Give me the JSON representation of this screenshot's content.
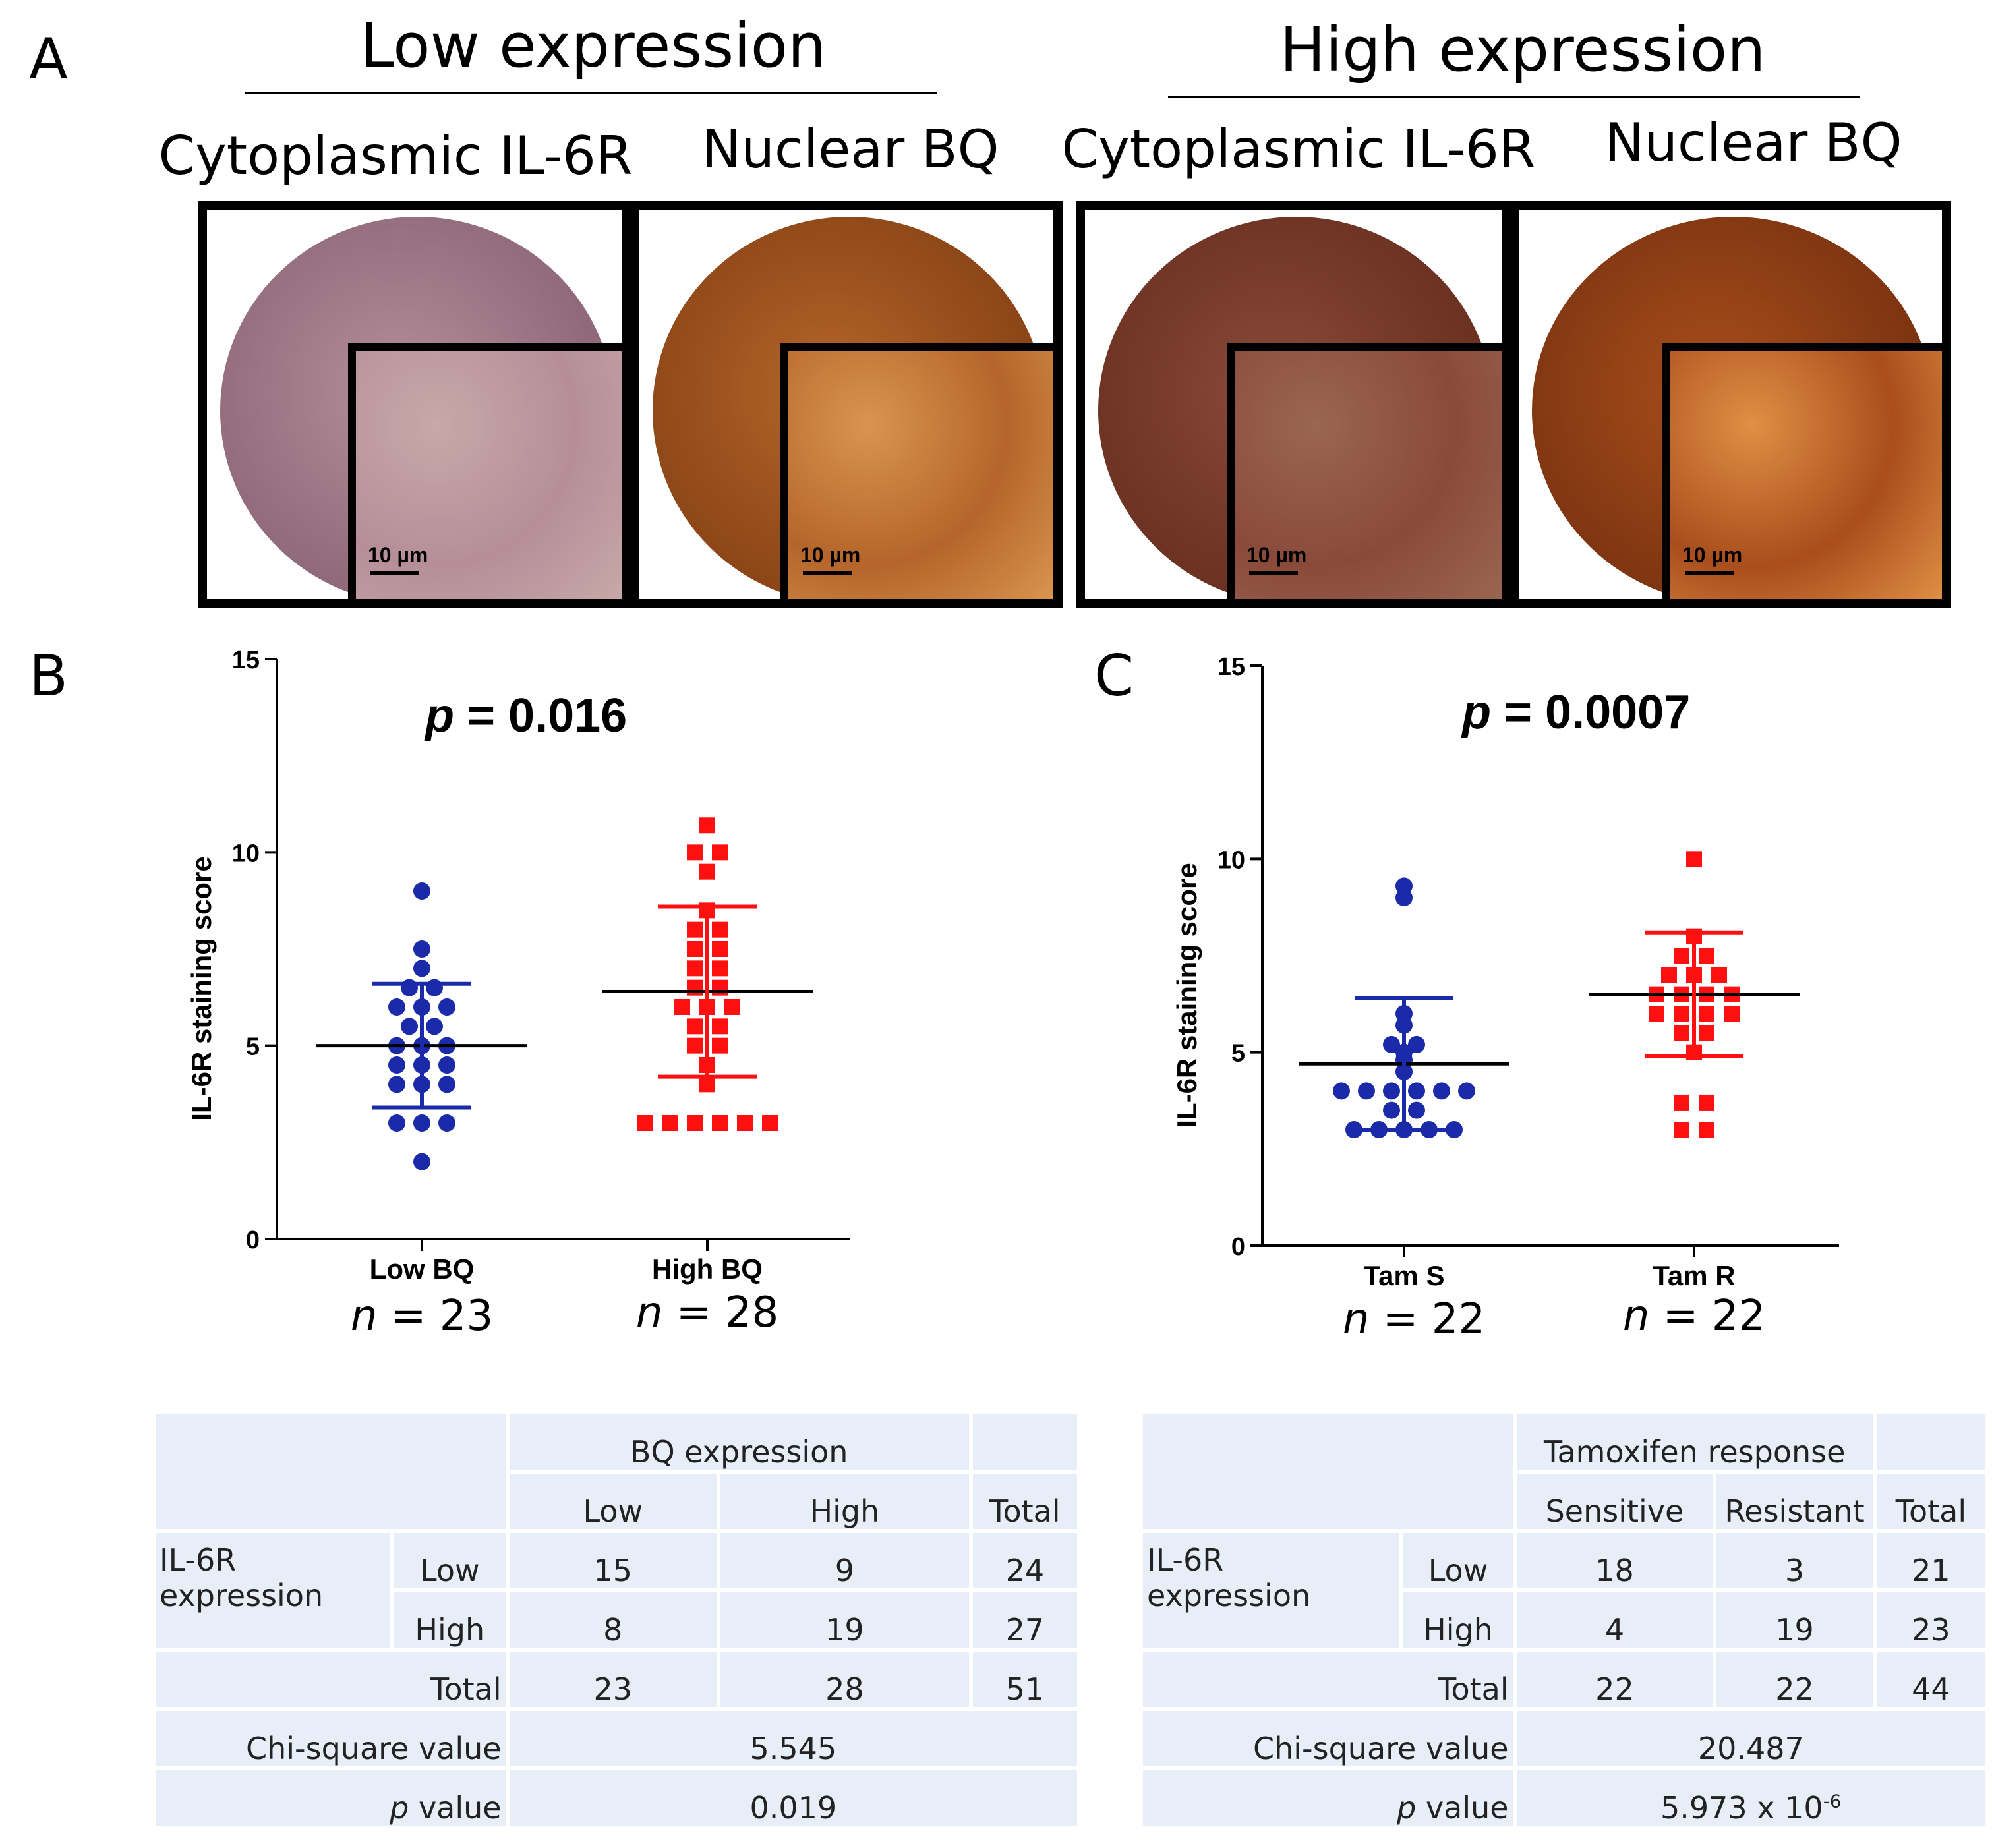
{
  "panel_a": {
    "letter": "A",
    "groups": [
      {
        "title": "Low expression",
        "images": [
          {
            "label": "Cytoplasmic IL-6R",
            "scale": "10 µm",
            "stain": "#b58e9a",
            "stain_dark": "#8e6878",
            "inset": "#c8a8a8"
          },
          {
            "label": "Nuclear BQ",
            "scale": "10 µm",
            "stain": "#b5652a",
            "stain_dark": "#8a4416",
            "inset": "#d9954f"
          }
        ]
      },
      {
        "title": "High expression",
        "images": [
          {
            "label": "Cytoplasmic IL-6R",
            "scale": "10 µm",
            "stain": "#8a4a3a",
            "stain_dark": "#6a3020",
            "inset": "#9a6650"
          },
          {
            "label": "Nuclear BQ",
            "scale": "10 µm",
            "stain": "#a94e1c",
            "stain_dark": "#7c3410",
            "inset": "#e08f45"
          }
        ]
      }
    ]
  },
  "chart_data": [
    {
      "type": "scatter",
      "panel": "B",
      "title": "p = 0.016",
      "ylabel": "IL-6R staining score",
      "ylim": [
        0,
        15
      ],
      "yticks": [
        "0",
        "5",
        "10",
        "15"
      ],
      "categories": [
        "Low BQ",
        "High BQ"
      ],
      "n_labels": [
        "n = 23",
        "n = 28"
      ],
      "series": [
        {
          "name": "Low BQ",
          "color": "#1a2aa8",
          "marker": "circle",
          "mean": 5.0,
          "sd_low": 3.4,
          "sd_high": 6.6,
          "values": [
            9.0,
            7.5,
            7.0,
            6.5,
            6.5,
            6.0,
            6.0,
            6.0,
            5.5,
            5.5,
            5.0,
            5.0,
            5.0,
            4.5,
            4.5,
            4.5,
            4.0,
            4.0,
            4.0,
            3.0,
            3.0,
            3.0,
            2.0
          ]
        },
        {
          "name": "High BQ",
          "color": "#ff1010",
          "marker": "square",
          "mean": 6.4,
          "sd_low": 4.2,
          "sd_high": 8.6,
          "values": [
            10.7,
            10.0,
            10.0,
            9.5,
            8.5,
            8.0,
            8.0,
            7.5,
            7.5,
            7.0,
            7.0,
            6.5,
            6.5,
            6.0,
            6.0,
            6.0,
            5.5,
            5.5,
            5.0,
            5.0,
            4.5,
            4.0,
            3.0,
            3.0,
            3.0,
            3.0,
            3.0,
            3.0
          ]
        }
      ]
    },
    {
      "type": "scatter",
      "panel": "C",
      "title": "p = 0.0007",
      "ylabel": "IL-6R staining score",
      "ylim": [
        0,
        15
      ],
      "yticks": [
        "0",
        "5",
        "10",
        "15"
      ],
      "categories": [
        "Tam S",
        "Tam R"
      ],
      "n_labels": [
        "n = 22",
        "n = 22"
      ],
      "series": [
        {
          "name": "Tam S",
          "color": "#1a2aa8",
          "marker": "circle",
          "mean": 4.7,
          "sd_low": 3.0,
          "sd_high": 6.4,
          "values": [
            9.3,
            9.0,
            6.0,
            5.7,
            5.2,
            5.2,
            5.0,
            4.8,
            4.5,
            4.0,
            4.0,
            4.0,
            4.0,
            4.0,
            4.0,
            3.5,
            3.5,
            3.0,
            3.0,
            3.0,
            3.0,
            3.0
          ]
        },
        {
          "name": "Tam R",
          "color": "#ff1010",
          "marker": "square",
          "mean": 6.5,
          "sd_low": 4.9,
          "sd_high": 8.1,
          "values": [
            10.0,
            8.0,
            7.5,
            7.5,
            7.0,
            7.0,
            7.0,
            6.5,
            6.5,
            6.5,
            6.5,
            6.0,
            6.0,
            6.0,
            6.0,
            5.5,
            5.5,
            5.0,
            3.7,
            3.7,
            3.0,
            3.0
          ]
        }
      ]
    }
  ],
  "table_b": {
    "header_group": "BQ expression",
    "cols": [
      "Low",
      "High",
      "Total"
    ],
    "row_header": "IL-6R expression",
    "rows": [
      {
        "label": "Low",
        "values": [
          "15",
          "9",
          "24"
        ]
      },
      {
        "label": "High",
        "values": [
          "8",
          "19",
          "27"
        ]
      }
    ],
    "total_label": "Total",
    "totals": [
      "23",
      "28",
      "51"
    ],
    "chi_label": "Chi-square value",
    "chi_value": "5.545",
    "p_label": "value",
    "p_italic": "p",
    "p_value": "0.019"
  },
  "table_c": {
    "header_group": "Tamoxifen response",
    "cols": [
      "Sensitive",
      "Resistant",
      "Total"
    ],
    "row_header": "IL-6R expression",
    "rows": [
      {
        "label": "Low",
        "values": [
          "18",
          "3",
          "21"
        ]
      },
      {
        "label": "High",
        "values": [
          "4",
          "19",
          "23"
        ]
      }
    ],
    "total_label": "Total",
    "totals": [
      "22",
      "22",
      "44"
    ],
    "chi_label": "Chi-square value",
    "chi_value": "20.487",
    "p_label": "value",
    "p_italic": "p",
    "p_value_base": "5.973 x 10",
    "p_value_exp": "-6"
  }
}
